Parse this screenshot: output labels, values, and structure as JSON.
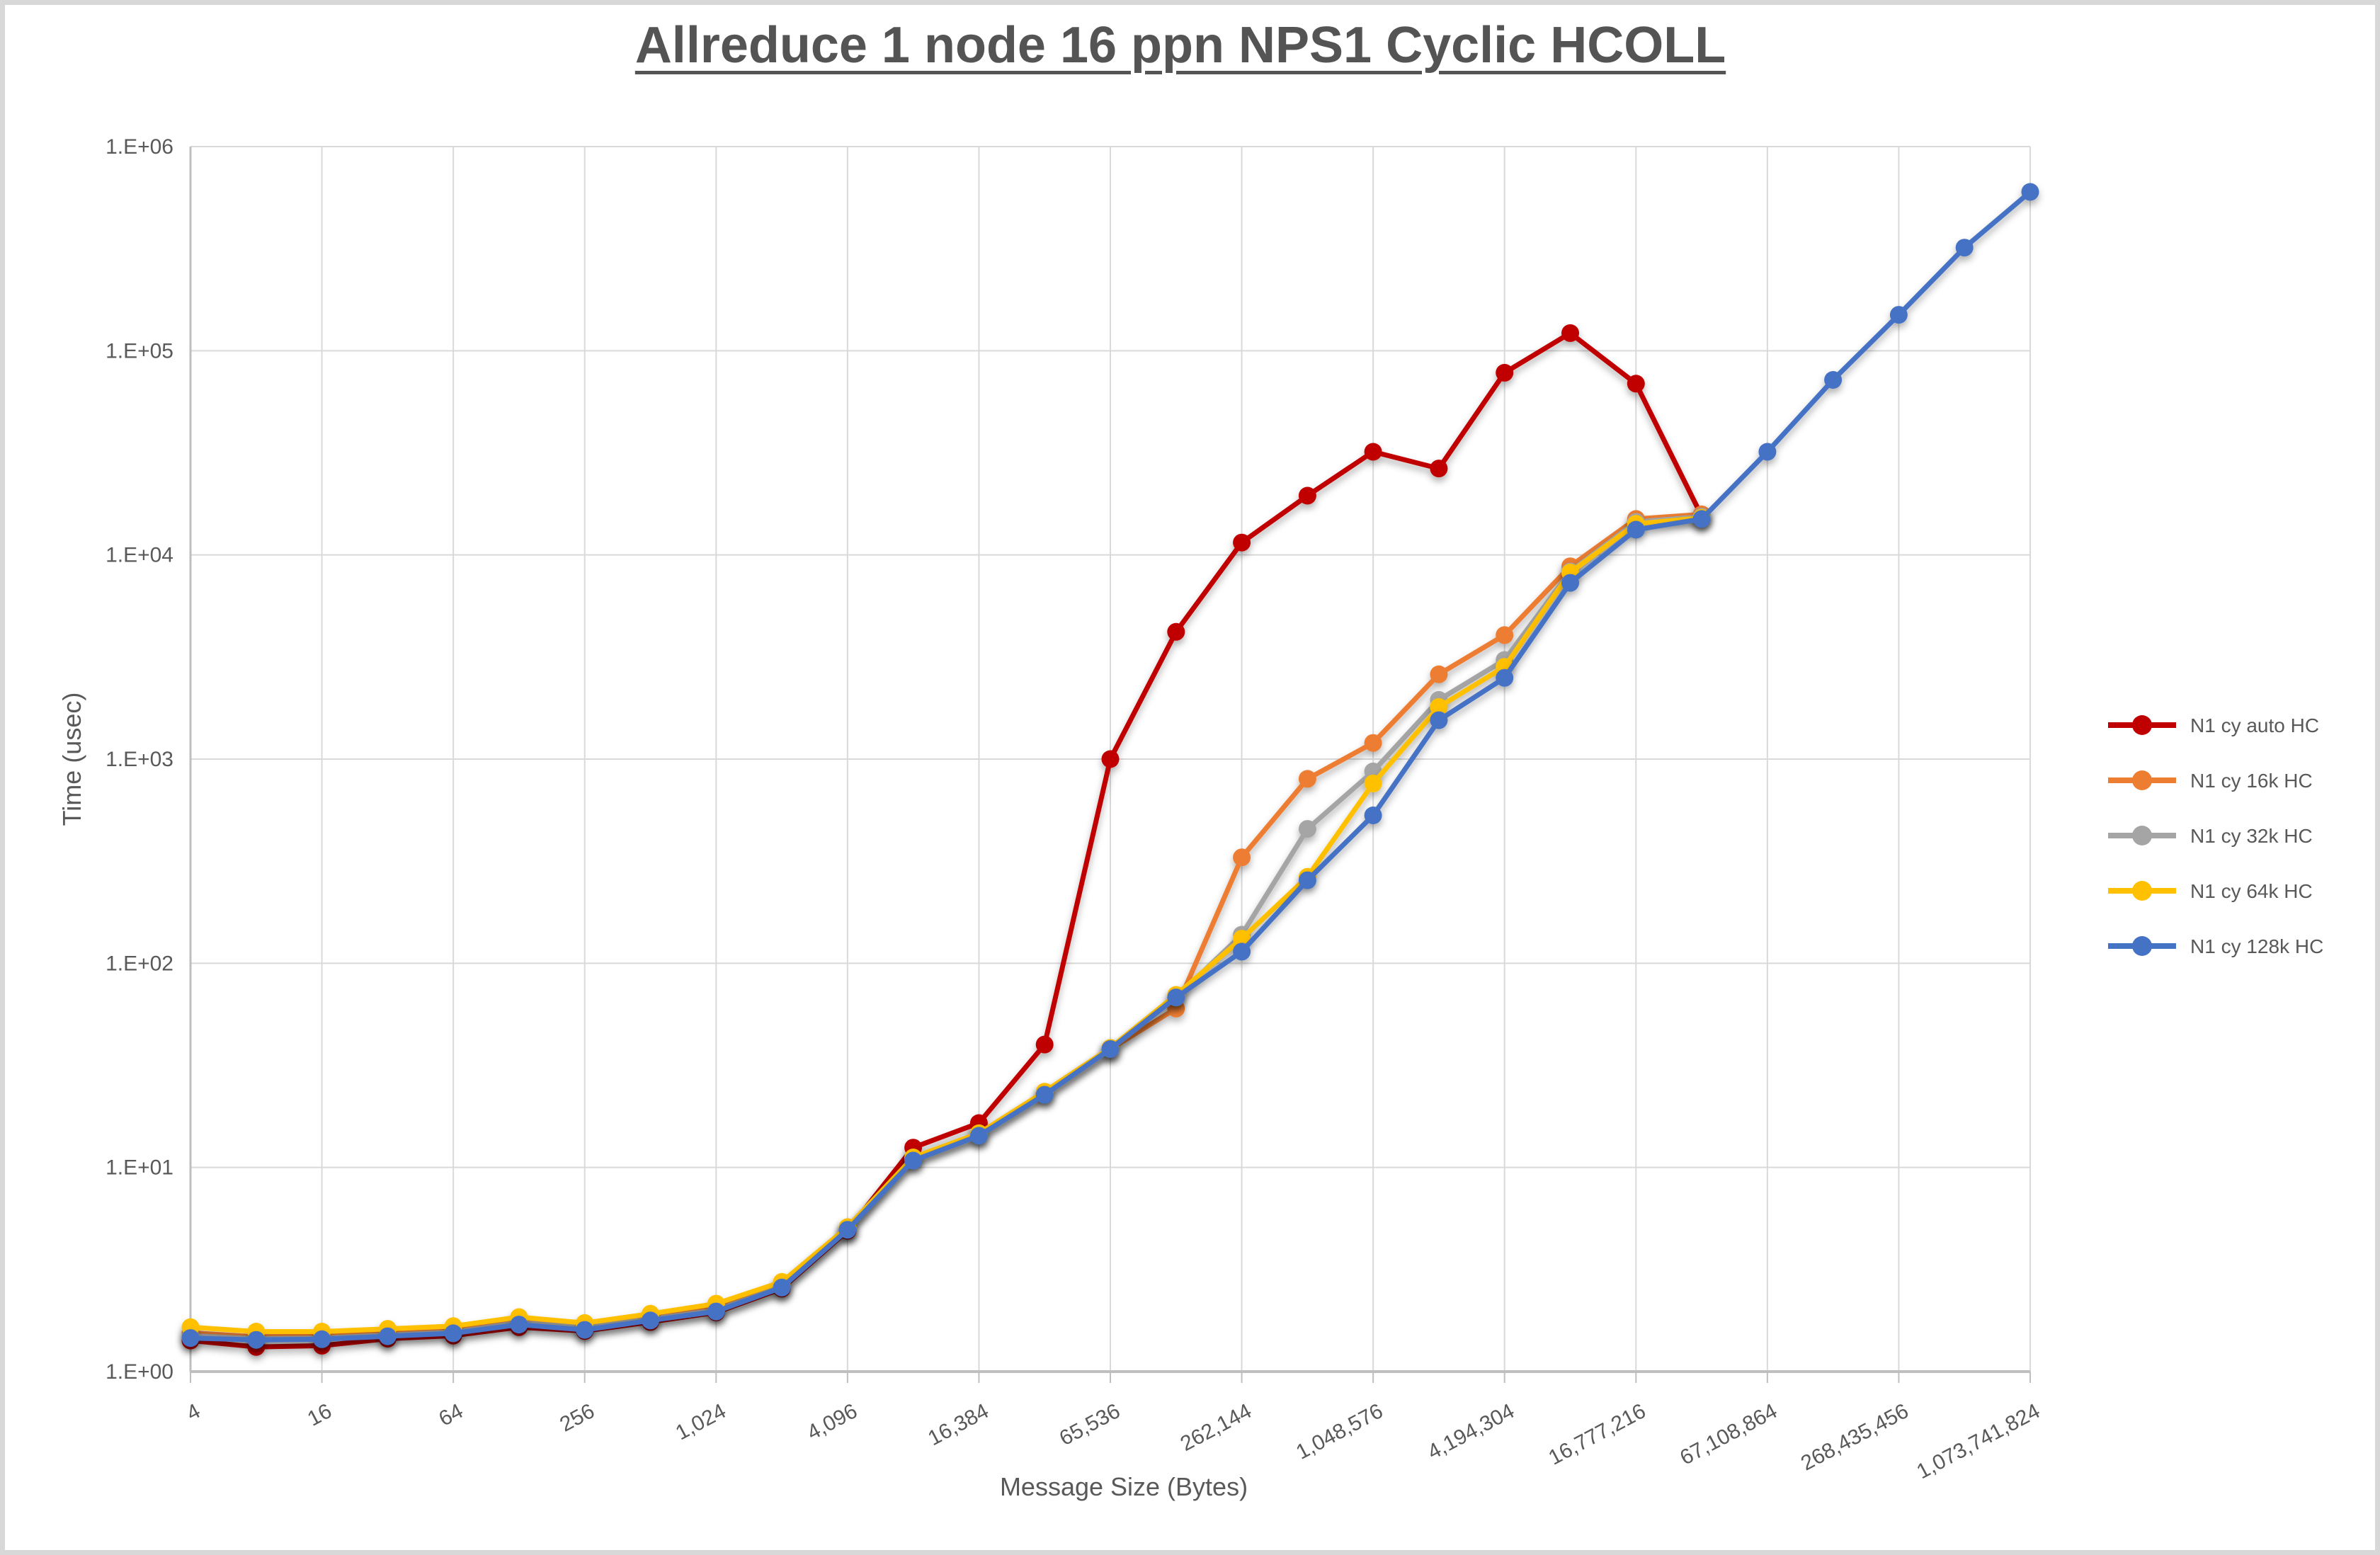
{
  "page": {
    "background_color": "#FFFFFF",
    "border_color": "#D8D8D8"
  },
  "chart": {
    "title": "Allreduce 1 node 16 ppn NPS1 Cyclic HCOLL",
    "x_axis_label": "Message Size (Bytes)",
    "y_axis_label": "Time (usec)",
    "title_color": "#545454",
    "text_color": "#595959",
    "grid_color": "#D9D9D9",
    "axis_line_color": "#BFBFBF"
  },
  "chart_data": {
    "type": "line",
    "title": "Allreduce 1 node 16 ppn NPS1 Cyclic HCOLL",
    "xlabel": "Message Size (Bytes)",
    "ylabel": "Time (usec)",
    "x_scale": "log2",
    "y_scale": "log10",
    "xlim": [
      4,
      1073741824
    ],
    "ylim": [
      1,
      1000000
    ],
    "grid": true,
    "legend_position": "right",
    "x_ticks": [
      {
        "value": 4,
        "label": "4"
      },
      {
        "value": 16,
        "label": "16"
      },
      {
        "value": 64,
        "label": "64"
      },
      {
        "value": 256,
        "label": "256"
      },
      {
        "value": 1024,
        "label": "1,024"
      },
      {
        "value": 4096,
        "label": "4,096"
      },
      {
        "value": 16384,
        "label": "16,384"
      },
      {
        "value": 65536,
        "label": "65,536"
      },
      {
        "value": 262144,
        "label": "262,144"
      },
      {
        "value": 1048576,
        "label": "1,048,576"
      },
      {
        "value": 4194304,
        "label": "4,194,304"
      },
      {
        "value": 16777216,
        "label": "16,777,216"
      },
      {
        "value": 67108864,
        "label": "67,108,864"
      },
      {
        "value": 268435456,
        "label": "268,435,456"
      },
      {
        "value": 1073741824,
        "label": "1,073,741,824"
      }
    ],
    "y_ticks": [
      {
        "value": 1,
        "label": "1.E+00"
      },
      {
        "value": 10,
        "label": "1.E+01"
      },
      {
        "value": 100,
        "label": "1.E+02"
      },
      {
        "value": 1000,
        "label": "1.E+03"
      },
      {
        "value": 10000,
        "label": "1.E+04"
      },
      {
        "value": 100000,
        "label": "1.E+05"
      },
      {
        "value": 1000000,
        "label": "1.E+06"
      }
    ],
    "series": [
      {
        "name": "N1 cy auto HC",
        "color": "#C00000",
        "points": [
          [
            4,
            1.42
          ],
          [
            8,
            1.32
          ],
          [
            16,
            1.34
          ],
          [
            32,
            1.45
          ],
          [
            64,
            1.5
          ],
          [
            128,
            1.65
          ],
          [
            256,
            1.58
          ],
          [
            512,
            1.75
          ],
          [
            1024,
            1.95
          ],
          [
            2048,
            2.55
          ],
          [
            4096,
            4.9
          ],
          [
            8192,
            12.5
          ],
          [
            16384,
            16.5
          ],
          [
            32768,
            40
          ],
          [
            65536,
            1000
          ],
          [
            131072,
            4200
          ],
          [
            262144,
            11500
          ],
          [
            524288,
            19500
          ],
          [
            1048576,
            32000
          ],
          [
            2097152,
            26500
          ],
          [
            4194304,
            78000
          ],
          [
            8388608,
            122000
          ],
          [
            16777216,
            69000
          ],
          [
            33554432,
            15500
          ]
        ]
      },
      {
        "name": "N1 cy 16k HC",
        "color": "#ED7D31",
        "points": [
          [
            4,
            1.55
          ],
          [
            8,
            1.48
          ],
          [
            16,
            1.5
          ],
          [
            32,
            1.55
          ],
          [
            64,
            1.6
          ],
          [
            128,
            1.78
          ],
          [
            256,
            1.68
          ],
          [
            512,
            1.85
          ],
          [
            1024,
            2.05
          ],
          [
            2048,
            2.65
          ],
          [
            4096,
            5.0
          ],
          [
            8192,
            11.0
          ],
          [
            16384,
            14.5
          ],
          [
            32768,
            23
          ],
          [
            65536,
            38
          ],
          [
            131072,
            60
          ],
          [
            262144,
            330
          ],
          [
            524288,
            800
          ],
          [
            1048576,
            1200
          ],
          [
            2097152,
            2600
          ],
          [
            4194304,
            4050
          ],
          [
            8388608,
            8800
          ],
          [
            16777216,
            15000
          ],
          [
            33554432,
            15800
          ]
        ]
      },
      {
        "name": "N1 cy 32k HC",
        "color": "#A5A5A5",
        "points": [
          [
            4,
            1.5
          ],
          [
            8,
            1.45
          ],
          [
            16,
            1.46
          ],
          [
            32,
            1.51
          ],
          [
            64,
            1.56
          ],
          [
            128,
            1.74
          ],
          [
            256,
            1.64
          ],
          [
            512,
            1.81
          ],
          [
            1024,
            2.0
          ],
          [
            2048,
            2.6
          ],
          [
            4096,
            5.0
          ],
          [
            8192,
            11.0
          ],
          [
            16384,
            14.5
          ],
          [
            32768,
            23
          ],
          [
            65536,
            38
          ],
          [
            131072,
            68
          ],
          [
            262144,
            138
          ],
          [
            524288,
            455
          ],
          [
            1048576,
            870
          ],
          [
            2097152,
            1950
          ],
          [
            4194304,
            3060
          ],
          [
            8388608,
            8300
          ],
          [
            16777216,
            14500
          ],
          [
            33554432,
            15400
          ]
        ]
      },
      {
        "name": "N1 cy 64k HC",
        "color": "#FFC000",
        "points": [
          [
            4,
            1.65
          ],
          [
            8,
            1.57
          ],
          [
            16,
            1.57
          ],
          [
            32,
            1.62
          ],
          [
            64,
            1.67
          ],
          [
            128,
            1.85
          ],
          [
            256,
            1.73
          ],
          [
            512,
            1.92
          ],
          [
            1024,
            2.15
          ],
          [
            2048,
            2.75
          ],
          [
            4096,
            5.1
          ],
          [
            8192,
            11.2
          ],
          [
            16384,
            14.7
          ],
          [
            32768,
            23.5
          ],
          [
            65536,
            38.5
          ],
          [
            131072,
            70
          ],
          [
            262144,
            132
          ],
          [
            524288,
            265
          ],
          [
            1048576,
            760
          ],
          [
            2097152,
            1800
          ],
          [
            4194304,
            2830
          ],
          [
            8388608,
            8200
          ],
          [
            16777216,
            14200
          ],
          [
            33554432,
            15200
          ]
        ]
      },
      {
        "name": "N1 cy 128k HC",
        "color": "#4472C4",
        "points": [
          [
            4,
            1.46
          ],
          [
            8,
            1.43
          ],
          [
            16,
            1.44
          ],
          [
            32,
            1.49
          ],
          [
            64,
            1.54
          ],
          [
            128,
            1.7
          ],
          [
            256,
            1.6
          ],
          [
            512,
            1.78
          ],
          [
            1024,
            1.97
          ],
          [
            2048,
            2.58
          ],
          [
            4096,
            4.95
          ],
          [
            8192,
            10.8
          ],
          [
            16384,
            14.3
          ],
          [
            32768,
            22.7
          ],
          [
            65536,
            38
          ],
          [
            131072,
            68
          ],
          [
            262144,
            114
          ],
          [
            524288,
            255
          ],
          [
            1048576,
            530
          ],
          [
            2097152,
            1550
          ],
          [
            4194304,
            2500
          ],
          [
            8388608,
            7300
          ],
          [
            16777216,
            13300
          ],
          [
            33554432,
            15000
          ],
          [
            67108864,
            32000
          ],
          [
            134217728,
            72000
          ],
          [
            268435456,
            150000
          ],
          [
            536870912,
            320000
          ],
          [
            1073741824,
            600000
          ]
        ]
      }
    ]
  }
}
